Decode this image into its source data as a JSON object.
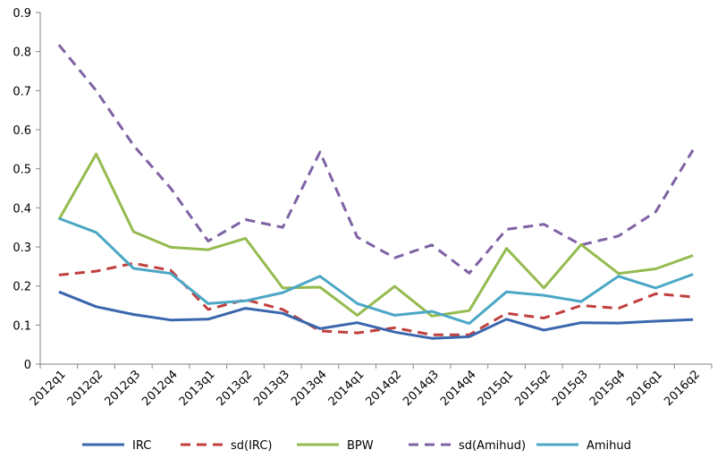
{
  "chart_data": {
    "type": "line",
    "title": "",
    "xlabel": "",
    "ylabel": "",
    "ylim": [
      0,
      0.9
    ],
    "y_ticks": [
      0,
      0.1,
      0.2,
      0.3,
      0.4,
      0.5,
      0.6,
      0.7,
      0.8,
      0.9
    ],
    "y_tick_labels": [
      "0",
      "0.1",
      "0.2",
      "0.3",
      "0.4",
      "0.5",
      "0.6",
      "0.7",
      "0.8",
      "0.9"
    ],
    "grid": false,
    "legend_position": "bottom",
    "categories": [
      "2012q1",
      "2012q2",
      "2012q3",
      "2012q4",
      "2013q1",
      "2013q2",
      "2013q3",
      "2013q4",
      "2014q1",
      "2014q2",
      "2014q3",
      "2014q4",
      "2015q1",
      "2015q2",
      "2015q3",
      "2015q4",
      "2016q1",
      "2016q2"
    ],
    "series": [
      {
        "name": "IRC",
        "color": "#3a67ad",
        "dash": "solid",
        "values": [
          0.185,
          0.147,
          0.127,
          0.113,
          0.115,
          0.143,
          0.13,
          0.091,
          0.106,
          0.082,
          0.066,
          0.07,
          0.115,
          0.087,
          0.106,
          0.105,
          0.11,
          0.114
        ]
      },
      {
        "name": "sd(IRC)",
        "color": "#c0403f",
        "dash": "dashed",
        "values": [
          0.228,
          0.238,
          0.258,
          0.24,
          0.14,
          0.165,
          0.14,
          0.085,
          0.08,
          0.093,
          0.075,
          0.075,
          0.13,
          0.118,
          0.15,
          0.143,
          0.18,
          0.172
        ]
      },
      {
        "name": "BPW",
        "color": "#95bb4f",
        "dash": "solid",
        "values": [
          0.37,
          0.538,
          0.339,
          0.299,
          0.293,
          0.322,
          0.195,
          0.197,
          0.125,
          0.199,
          0.123,
          0.137,
          0.296,
          0.195,
          0.306,
          0.232,
          0.244,
          0.278
        ]
      },
      {
        "name": "sd(Amihud)",
        "color": "#7f62a4",
        "dash": "dashed",
        "values": [
          0.817,
          0.7,
          0.56,
          0.45,
          0.315,
          0.37,
          0.35,
          0.543,
          0.325,
          0.272,
          0.305,
          0.233,
          0.345,
          0.358,
          0.305,
          0.328,
          0.39,
          0.548
        ]
      },
      {
        "name": "Amihud",
        "color": "#4aa7c5",
        "dash": "solid",
        "values": [
          0.373,
          0.337,
          0.245,
          0.232,
          0.155,
          0.162,
          0.183,
          0.225,
          0.155,
          0.125,
          0.135,
          0.104,
          0.185,
          0.176,
          0.16,
          0.225,
          0.195,
          0.23
        ]
      }
    ]
  }
}
